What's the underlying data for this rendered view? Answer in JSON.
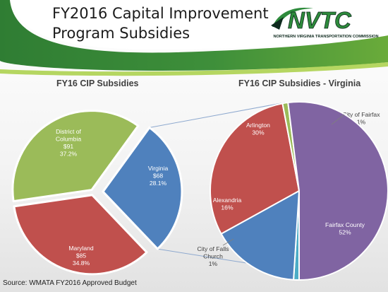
{
  "slide": {
    "title_line_1": "FY2016 Capital Improvement",
    "title_line_2": "Program Subsidies",
    "source": "Source: WMATA FY2016 Approved Budget",
    "colors": {
      "banner_green": "#3e8f3a",
      "banner_light_green": "#a8cf45",
      "heading_text": "#404040"
    }
  },
  "logo": {
    "wordmark": "NVTC",
    "tagline": "NORTHERN VIRGINIA TRANSPORTATION COMMISSION",
    "colors": {
      "green": "#2e8b3c",
      "dark": "#0e2a1e"
    }
  },
  "chart_data": [
    {
      "type": "pie",
      "title": "FY16 CIP Subsidies",
      "slices": [
        {
          "label": "District of Columbia",
          "value": 91,
          "value_label": "$91",
          "percent_label": "37.2%",
          "color": "#9bbb59"
        },
        {
          "label": "Virginia",
          "value": 68,
          "value_label": "$68",
          "percent_label": "28.1%",
          "color": "#4f81bd"
        },
        {
          "label": "Maryland",
          "value": 85,
          "value_label": "$85",
          "percent_label": "34.8%",
          "color": "#c0504d"
        }
      ],
      "exploded_slice": "Virginia"
    },
    {
      "type": "pie",
      "title": "FY16 CIP Subsidies - Virginia",
      "slices": [
        {
          "label": "Arlington",
          "value": 30,
          "percent_label": "30%",
          "color": "#c0504d"
        },
        {
          "label": "City of Fairfax",
          "value": 1,
          "percent_label": "1%",
          "color": "#9bbb59"
        },
        {
          "label": "Fairfax County",
          "value": 52,
          "percent_label": "52%",
          "color": "#8064a2"
        },
        {
          "label": "City of Falls Church",
          "value": 1,
          "percent_label": "1%",
          "color": "#4bacc6"
        },
        {
          "label": "Alexandria",
          "value": 16,
          "percent_label": "16%",
          "color": "#4f81bd"
        }
      ]
    }
  ]
}
